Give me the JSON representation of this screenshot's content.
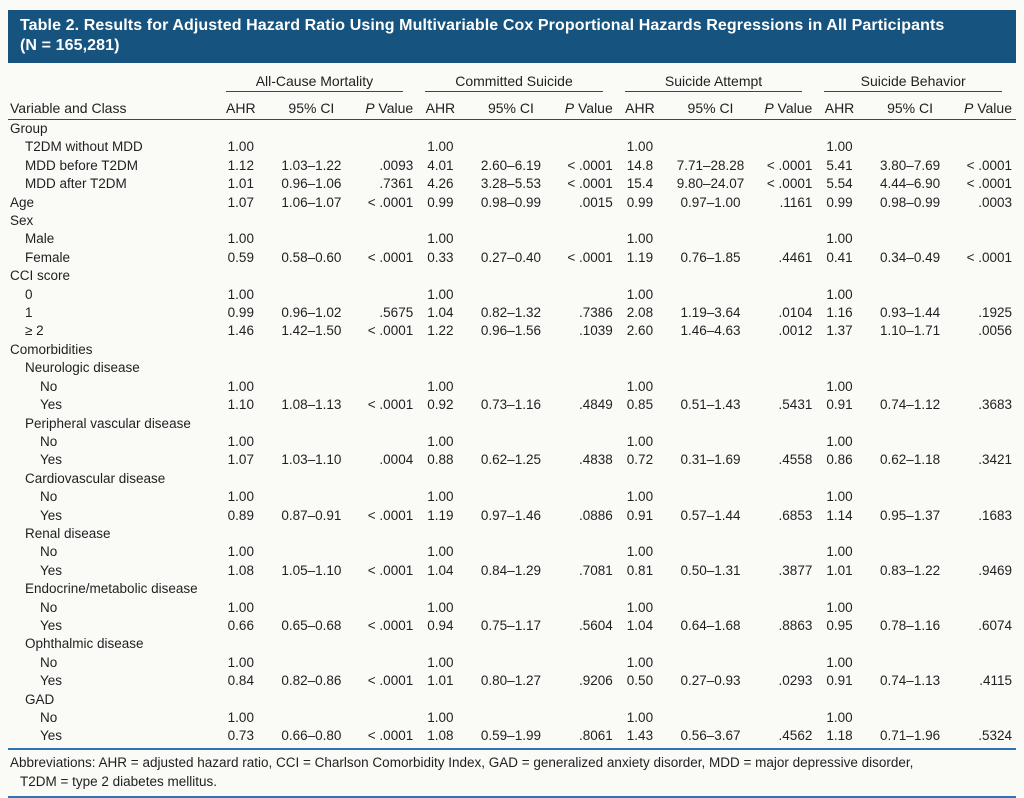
{
  "colors": {
    "title_bar": "#17537f",
    "rule_blue": "#2e74b5",
    "rule_dark": "#454545"
  },
  "title": {
    "line1": "Table 2. Results for Adjusted Hazard Ratio Using Multivariable Cox Proportional Hazards Regressions in All Participants",
    "line2": "(N = 165,281)"
  },
  "table": {
    "row_header": "Variable and Class",
    "groups": [
      "All-Cause Mortality",
      "Committed Suicide",
      "Suicide Attempt",
      "Suicide Behavior"
    ],
    "subheaders": {
      "ahr": "AHR",
      "ci": "95% CI",
      "p": "P Value"
    },
    "rows": [
      {
        "label": "Group",
        "indent": 0,
        "cells": []
      },
      {
        "label": "T2DM without MDD",
        "indent": 1,
        "cells": [
          "1.00",
          "",
          "",
          "1.00",
          "",
          "",
          "1.00",
          "",
          "",
          "1.00",
          "",
          ""
        ]
      },
      {
        "label": "MDD before T2DM",
        "indent": 1,
        "cells": [
          "1.12",
          "1.03–1.22",
          ".0093",
          "4.01",
          "2.60–6.19",
          "< .0001",
          "14.8",
          "7.71–28.28",
          "< .0001",
          "5.41",
          "3.80–7.69",
          "< .0001"
        ]
      },
      {
        "label": "MDD after T2DM",
        "indent": 1,
        "cells": [
          "1.01",
          "0.96–1.06",
          ".7361",
          "4.26",
          "3.28–5.53",
          "< .0001",
          "15.4",
          "9.80–24.07",
          "< .0001",
          "5.54",
          "4.44–6.90",
          "< .0001"
        ]
      },
      {
        "label": "Age",
        "indent": 0,
        "cells": [
          "1.07",
          "1.06–1.07",
          "< .0001",
          "0.99",
          "0.98–0.99",
          ".0015",
          "0.99",
          "0.97–1.00",
          ".1161",
          "0.99",
          "0.98–0.99",
          ".0003"
        ]
      },
      {
        "label": "Sex",
        "indent": 0,
        "cells": []
      },
      {
        "label": "Male",
        "indent": 1,
        "cells": [
          "1.00",
          "",
          "",
          "1.00",
          "",
          "",
          "1.00",
          "",
          "",
          "1.00",
          "",
          ""
        ]
      },
      {
        "label": "Female",
        "indent": 1,
        "cells": [
          "0.59",
          "0.58–0.60",
          "< .0001",
          "0.33",
          "0.27–0.40",
          "< .0001",
          "1.19",
          "0.76–1.85",
          ".4461",
          "0.41",
          "0.34–0.49",
          "< .0001"
        ]
      },
      {
        "label": "CCI score",
        "indent": 0,
        "cells": []
      },
      {
        "label": "0",
        "indent": 1,
        "cells": [
          "1.00",
          "",
          "",
          "1.00",
          "",
          "",
          "1.00",
          "",
          "",
          "1.00",
          "",
          ""
        ]
      },
      {
        "label": "1",
        "indent": 1,
        "cells": [
          "0.99",
          "0.96–1.02",
          ".5675",
          "1.04",
          "0.82–1.32",
          ".7386",
          "2.08",
          "1.19–3.64",
          ".0104",
          "1.16",
          "0.93–1.44",
          ".1925"
        ]
      },
      {
        "label": "≥ 2",
        "indent": 1,
        "cells": [
          "1.46",
          "1.42–1.50",
          "< .0001",
          "1.22",
          "0.96–1.56",
          ".1039",
          "2.60",
          "1.46–4.63",
          ".0012",
          "1.37",
          "1.10–1.71",
          ".0056"
        ]
      },
      {
        "label": "Comorbidities",
        "indent": 0,
        "cells": []
      },
      {
        "label": "Neurologic disease",
        "indent": 1,
        "cells": []
      },
      {
        "label": "No",
        "indent": 2,
        "cells": [
          "1.00",
          "",
          "",
          "1.00",
          "",
          "",
          "1.00",
          "",
          "",
          "1.00",
          "",
          ""
        ]
      },
      {
        "label": "Yes",
        "indent": 2,
        "cells": [
          "1.10",
          "1.08–1.13",
          "< .0001",
          "0.92",
          "0.73–1.16",
          ".4849",
          "0.85",
          "0.51–1.43",
          ".5431",
          "0.91",
          "0.74–1.12",
          ".3683"
        ]
      },
      {
        "label": "Peripheral vascular disease",
        "indent": 1,
        "cells": []
      },
      {
        "label": "No",
        "indent": 2,
        "cells": [
          "1.00",
          "",
          "",
          "1.00",
          "",
          "",
          "1.00",
          "",
          "",
          "1.00",
          "",
          ""
        ]
      },
      {
        "label": "Yes",
        "indent": 2,
        "cells": [
          "1.07",
          "1.03–1.10",
          ".0004",
          "0.88",
          "0.62–1.25",
          ".4838",
          "0.72",
          "0.31–1.69",
          ".4558",
          "0.86",
          "0.62–1.18",
          ".3421"
        ]
      },
      {
        "label": "Cardiovascular disease",
        "indent": 1,
        "cells": []
      },
      {
        "label": "No",
        "indent": 2,
        "cells": [
          "1.00",
          "",
          "",
          "1.00",
          "",
          "",
          "1.00",
          "",
          "",
          "1.00",
          "",
          ""
        ]
      },
      {
        "label": "Yes",
        "indent": 2,
        "cells": [
          "0.89",
          "0.87–0.91",
          "< .0001",
          "1.19",
          "0.97–1.46",
          ".0886",
          "0.91",
          "0.57–1.44",
          ".6853",
          "1.14",
          "0.95–1.37",
          ".1683"
        ]
      },
      {
        "label": "Renal disease",
        "indent": 1,
        "cells": []
      },
      {
        "label": "No",
        "indent": 2,
        "cells": [
          "1.00",
          "",
          "",
          "1.00",
          "",
          "",
          "1.00",
          "",
          "",
          "1.00",
          "",
          ""
        ]
      },
      {
        "label": "Yes",
        "indent": 2,
        "cells": [
          "1.08",
          "1.05–1.10",
          "< .0001",
          "1.04",
          "0.84–1.29",
          ".7081",
          "0.81",
          "0.50–1.31",
          ".3877",
          "1.01",
          "0.83–1.22",
          ".9469"
        ]
      },
      {
        "label": "Endocrine/metabolic disease",
        "indent": 1,
        "cells": []
      },
      {
        "label": "No",
        "indent": 2,
        "cells": [
          "1.00",
          "",
          "",
          "1.00",
          "",
          "",
          "1.00",
          "",
          "",
          "1.00",
          "",
          ""
        ]
      },
      {
        "label": "Yes",
        "indent": 2,
        "cells": [
          "0.66",
          "0.65–0.68",
          "< .0001",
          "0.94",
          "0.75–1.17",
          ".5604",
          "1.04",
          "0.64–1.68",
          ".8863",
          "0.95",
          "0.78–1.16",
          ".6074"
        ]
      },
      {
        "label": "Ophthalmic disease",
        "indent": 1,
        "cells": []
      },
      {
        "label": "No",
        "indent": 2,
        "cells": [
          "1.00",
          "",
          "",
          "1.00",
          "",
          "",
          "1.00",
          "",
          "",
          "1.00",
          "",
          ""
        ]
      },
      {
        "label": "Yes",
        "indent": 2,
        "cells": [
          "0.84",
          "0.82–0.86",
          "< .0001",
          "1.01",
          "0.80–1.27",
          ".9206",
          "0.50",
          "0.27–0.93",
          ".0293",
          "0.91",
          "0.74–1.13",
          ".4115"
        ]
      },
      {
        "label": "GAD",
        "indent": 1,
        "cells": []
      },
      {
        "label": "No",
        "indent": 2,
        "cells": [
          "1.00",
          "",
          "",
          "1.00",
          "",
          "",
          "1.00",
          "",
          "",
          "1.00",
          "",
          ""
        ]
      },
      {
        "label": "Yes",
        "indent": 2,
        "cells": [
          "0.73",
          "0.66–0.80",
          "< .0001",
          "1.08",
          "0.59–1.99",
          ".8061",
          "1.43",
          "0.56–3.67",
          ".4562",
          "1.18",
          "0.71–1.96",
          ".5324"
        ]
      }
    ]
  },
  "footnote": {
    "line1": "Abbreviations: AHR = adjusted hazard ratio, CCI = Charlson Comorbidity Index, GAD = generalized anxiety disorder, MDD = major depressive disorder,",
    "line2": "T2DM = type 2 diabetes mellitus."
  }
}
